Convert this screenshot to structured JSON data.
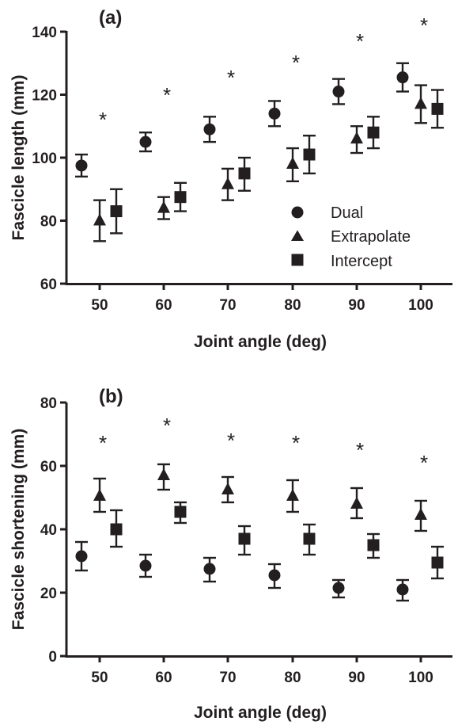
{
  "chart_data": [
    {
      "type": "scatter",
      "panel_label": "(a)",
      "xlabel": "Joint angle (deg)",
      "ylabel": "Fascicle length (mm)",
      "ylim": [
        60,
        140
      ],
      "yticks": [
        60,
        80,
        100,
        120,
        140
      ],
      "categories": [
        "50",
        "60",
        "70",
        "80",
        "90",
        "100"
      ],
      "annotation": "*",
      "legend": {
        "position": "lower-right",
        "entries": [
          "Dual",
          "Extrapolate",
          "Intercept"
        ]
      },
      "series": [
        {
          "name": "Dual",
          "marker": "circle",
          "values": [
            97.5,
            105,
            109,
            114,
            121,
            125.5
          ],
          "err_low": [
            94,
            102,
            105,
            110,
            117,
            121
          ],
          "err_high": [
            101,
            108,
            113,
            118,
            125,
            130
          ]
        },
        {
          "name": "Extrapolate",
          "marker": "triangle",
          "values": [
            80,
            84,
            91.5,
            98,
            106,
            117
          ],
          "err_low": [
            73.5,
            80.5,
            86.5,
            92.5,
            101.5,
            111
          ],
          "err_high": [
            86.5,
            87.5,
            96.5,
            103,
            110,
            123
          ]
        },
        {
          "name": "Intercept",
          "marker": "square",
          "values": [
            83,
            87.5,
            95,
            101,
            108,
            115.5
          ],
          "err_low": [
            76,
            83,
            89.5,
            95,
            103,
            109.5
          ],
          "err_high": [
            90,
            92,
            100,
            107,
            113,
            121.5
          ]
        }
      ]
    },
    {
      "type": "scatter",
      "panel_label": "(b)",
      "xlabel": "Joint angle (deg)",
      "ylabel": "Fascicle shortening (mm)",
      "ylim": [
        0,
        80
      ],
      "yticks": [
        0,
        20,
        40,
        60,
        80
      ],
      "categories": [
        "50",
        "60",
        "70",
        "80",
        "90",
        "100"
      ],
      "annotation": "*",
      "series": [
        {
          "name": "Dual",
          "marker": "circle",
          "values": [
            31.5,
            28.5,
            27.5,
            25.5,
            21.5,
            21
          ],
          "err_low": [
            27,
            25,
            23.5,
            21.5,
            18.5,
            17.5
          ],
          "err_high": [
            36,
            32,
            31,
            29,
            24,
            24
          ]
        },
        {
          "name": "Extrapolate",
          "marker": "triangle",
          "values": [
            50.5,
            57,
            52.5,
            50.5,
            48,
            44.5
          ],
          "err_low": [
            45.5,
            52.5,
            48.5,
            45.5,
            43.5,
            39.5
          ],
          "err_high": [
            56,
            60.5,
            56.5,
            55.5,
            53,
            49
          ]
        },
        {
          "name": "Intercept",
          "marker": "square",
          "values": [
            40,
            45.5,
            37,
            37,
            35,
            29.5
          ],
          "err_low": [
            34.5,
            42,
            32,
            32,
            31,
            24.5
          ],
          "err_high": [
            46,
            48.5,
            41,
            41.5,
            38.5,
            34.5
          ]
        }
      ]
    }
  ],
  "colors": {
    "ink": "#231f20",
    "background": "#ffffff"
  }
}
